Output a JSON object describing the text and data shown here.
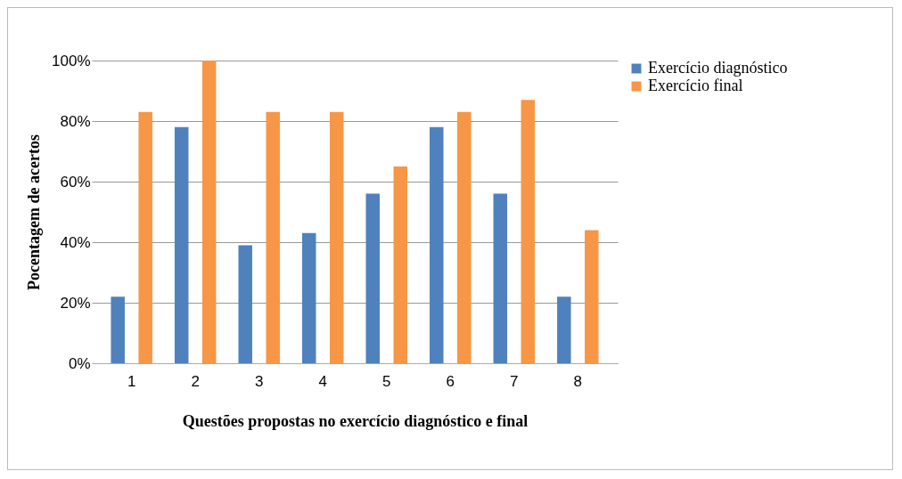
{
  "chart_data": {
    "type": "bar",
    "xlabel": "Questões propostas no exercício diagnóstico e final",
    "ylabel": "Pocentagem de acertos",
    "categories": [
      "1",
      "2",
      "3",
      "4",
      "5",
      "6",
      "7",
      "8"
    ],
    "series": [
      {
        "name": "Exercício diagnóstico",
        "color": "#4f81bd",
        "values": [
          22,
          78,
          39,
          43,
          56,
          78,
          56,
          22
        ]
      },
      {
        "name": "Exercício final",
        "color": "#f79646",
        "values": [
          83,
          100,
          83,
          83,
          65,
          83,
          87,
          44
        ]
      }
    ],
    "ylim": [
      0,
      100
    ],
    "yticks": [
      {
        "value": 0,
        "label": "0%"
      },
      {
        "value": 20,
        "label": "20%"
      },
      {
        "value": 40,
        "label": "40%"
      },
      {
        "value": 60,
        "label": "60%"
      },
      {
        "value": 80,
        "label": "80%"
      },
      {
        "value": 100,
        "label": "100%"
      }
    ],
    "grid": "y",
    "legend": "right"
  }
}
